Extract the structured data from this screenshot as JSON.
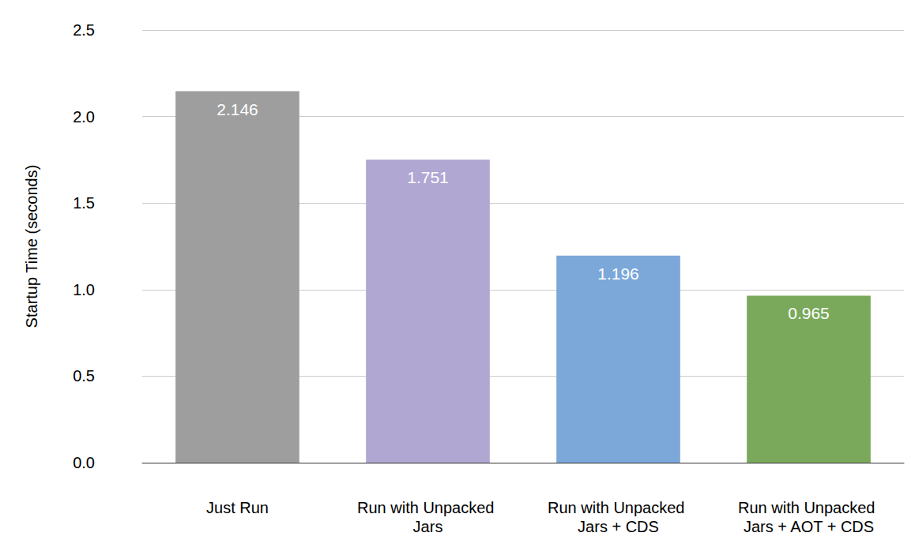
{
  "chart_data": {
    "type": "bar",
    "y_label": "Startup Time (seconds)",
    "categories": [
      "Just Run",
      "Run with Unpacked Jars",
      "Run with Unpacked Jars + CDS",
      "Run with Unpacked Jars + AOT + CDS"
    ],
    "values": [
      2.146,
      1.751,
      1.196,
      0.965
    ],
    "colors": [
      "#9e9e9e",
      "#b1a7d3",
      "#7ba7d9",
      "#7aa95c"
    ],
    "ylim": [
      0,
      2.5
    ],
    "yticks": [
      {
        "value": 0,
        "label": "0.0"
      },
      0.5,
      {
        "value": 1,
        "label": "1.0"
      },
      1.5,
      {
        "value": 2,
        "label": "2.0"
      },
      2.5
    ],
    "grid": true,
    "data_labels": true
  }
}
